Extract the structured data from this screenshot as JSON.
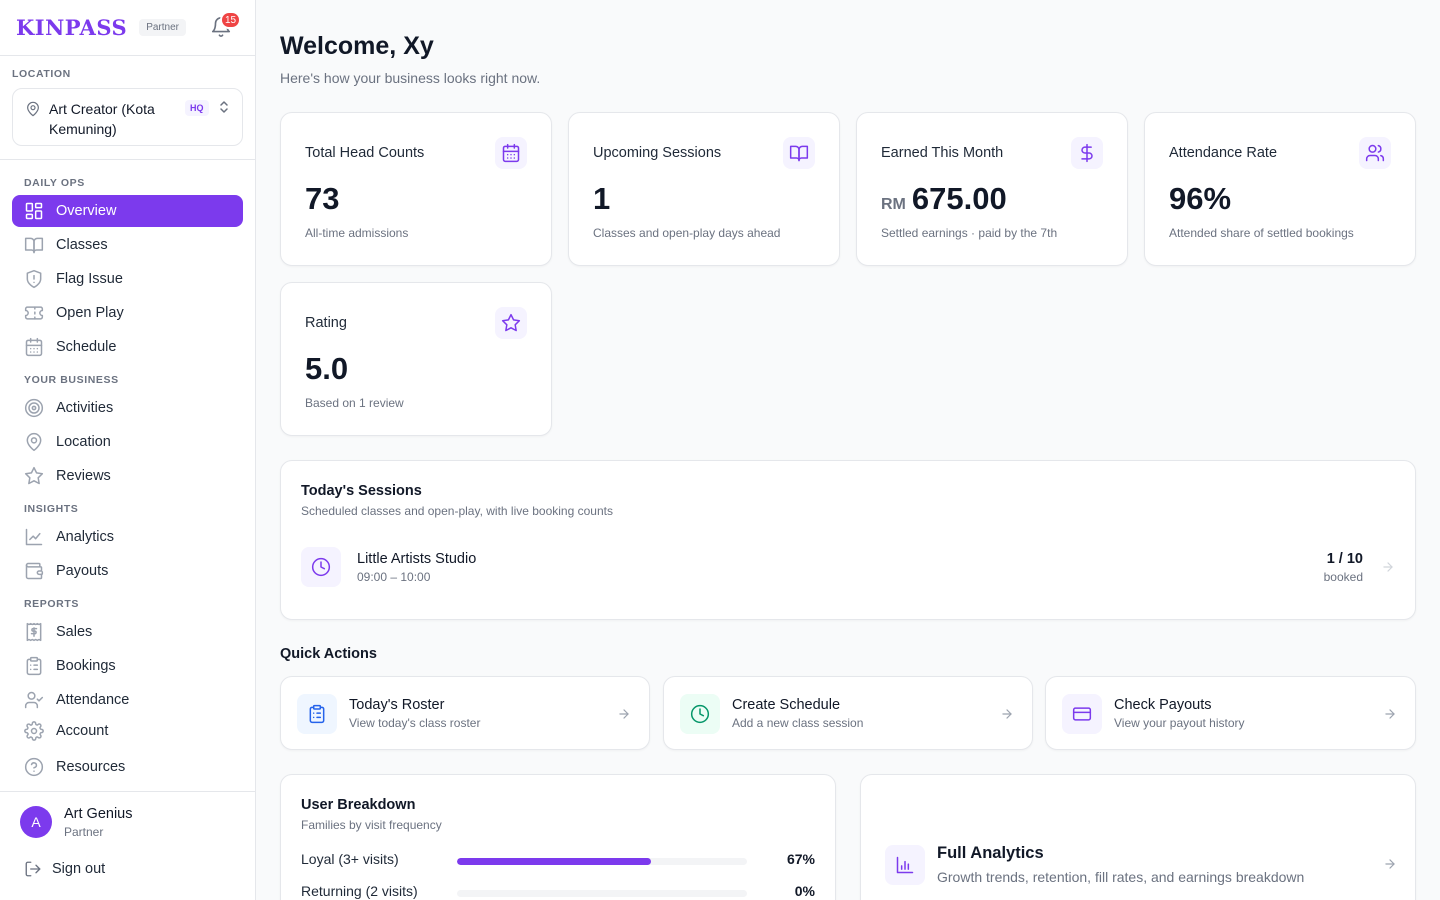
{
  "brand": {
    "logo": "KINPASS",
    "tag": "Partner",
    "notification_count": "15"
  },
  "location": {
    "label": "LOCATION",
    "name": "Art Creator (Kota Kemuning)",
    "badge": "HQ"
  },
  "nav": {
    "daily_ops": "DAILY OPS",
    "your_business": "YOUR BUSINESS",
    "insights": "INSIGHTS",
    "reports": "REPORTS",
    "items": {
      "overview": "Overview",
      "classes": "Classes",
      "flag_issue": "Flag Issue",
      "open_play": "Open Play",
      "schedule": "Schedule",
      "activities": "Activities",
      "location": "Location",
      "reviews": "Reviews",
      "analytics": "Analytics",
      "payouts": "Payouts",
      "sales": "Sales",
      "bookings": "Bookings",
      "attendance": "Attendance",
      "account": "Account",
      "resources": "Resources"
    },
    "active": "overview"
  },
  "user": {
    "initial": "A",
    "name": "Art Genius",
    "role": "Partner",
    "sign_out": "Sign out"
  },
  "header": {
    "title": "Welcome, Xy",
    "subtitle": "Here's how your business looks right now."
  },
  "stats": {
    "head_counts": {
      "title": "Total Head Counts",
      "value": "73",
      "desc": "All-time admissions",
      "icon": "calendar-icon"
    },
    "upcoming": {
      "title": "Upcoming Sessions",
      "value": "1",
      "desc": "Classes and open-play days ahead",
      "icon": "book-open-icon"
    },
    "earned": {
      "title": "Earned This Month",
      "currency": "RM",
      "value": "675.00",
      "desc": "Settled earnings · paid by the 7th",
      "icon": "dollar-icon"
    },
    "attendance": {
      "title": "Attendance Rate",
      "value": "96%",
      "desc": "Attended share of settled bookings",
      "icon": "users-icon"
    },
    "rating": {
      "title": "Rating",
      "value": "5.0",
      "desc": "Based on 1 review",
      "icon": "star-icon"
    }
  },
  "today": {
    "title": "Today's Sessions",
    "subtitle": "Scheduled classes and open-play, with live booking counts",
    "sessions": [
      {
        "name": "Little Artists Studio",
        "time": "09:00 – 10:00",
        "count": "1 / 10",
        "booked_label": "booked"
      }
    ]
  },
  "quick_actions": {
    "title": "Quick Actions",
    "items": [
      {
        "title": "Today's Roster",
        "sub": "View today's class roster",
        "icon": "clipboard-icon",
        "color": "#2563eb"
      },
      {
        "title": "Create Schedule",
        "sub": "Add a new class session",
        "icon": "clock-icon",
        "color": "#059669"
      },
      {
        "title": "Check Payouts",
        "sub": "View your payout history",
        "icon": "credit-card-icon",
        "color": "#7c3aed"
      }
    ]
  },
  "user_breakdown": {
    "title": "User Breakdown",
    "subtitle": "Families by visit frequency",
    "rows": [
      {
        "label": "Loyal (3+ visits)",
        "pct_label": "67%",
        "pct": 67
      },
      {
        "label": "Returning (2 visits)",
        "pct_label": "0%",
        "pct": 0
      }
    ]
  },
  "full_analytics": {
    "title": "Full Analytics",
    "subtitle": "Growth trends, retention, fill rates, and earnings breakdown"
  },
  "colors": {
    "accent": "#7c3aed",
    "badge": "#ef4444"
  }
}
